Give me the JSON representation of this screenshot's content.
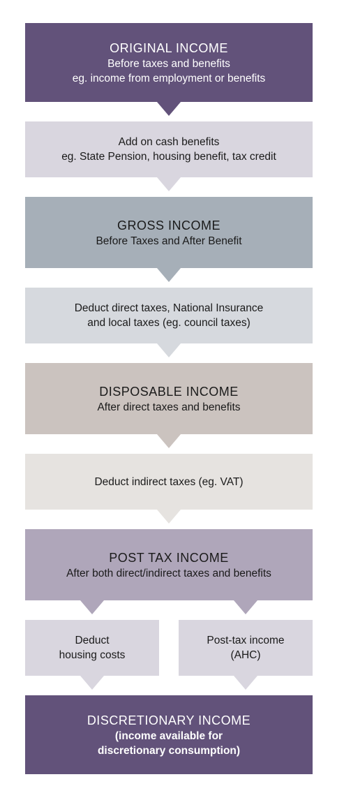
{
  "colors": {
    "purple_dark": "#62527a",
    "purple_light": "#d9d6df",
    "slate": "#a6afb8",
    "slate_light": "#d6d9de",
    "taupe": "#cbc3bf",
    "taupe_light": "#e6e3e0",
    "mauve": "#afa6ba",
    "mauve_light": "#d9d6df"
  },
  "original": {
    "title": "ORIGINAL INCOME",
    "line1": "Before taxes and benefits",
    "line2": "eg. income from employment or benefits"
  },
  "add_benefits": {
    "line1": "Add on cash benefits",
    "line2": "eg. State Pension, housing benefit, tax credit"
  },
  "gross": {
    "title": "GROSS INCOME",
    "line1": "Before Taxes and After Benefit"
  },
  "deduct_direct": {
    "line1": "Deduct direct taxes, National Insurance",
    "line2": "and local taxes (eg. council taxes)"
  },
  "disposable": {
    "title": "DISPOSABLE INCOME",
    "line1": "After direct taxes and benefits"
  },
  "deduct_indirect": {
    "line1": "Deduct indirect taxes (eg. VAT)"
  },
  "post_tax": {
    "title": "POST TAX INCOME",
    "line1": "After both direct/indirect taxes and benefits"
  },
  "deduct_housing": {
    "line1": "Deduct",
    "line2": "housing costs"
  },
  "post_tax_ahc": {
    "line1": "Post-tax income",
    "line2": "(AHC)"
  },
  "discretionary": {
    "title": "DISCRETIONARY INCOME",
    "line1": "(income available for",
    "line2": "discretionary consumption)"
  }
}
